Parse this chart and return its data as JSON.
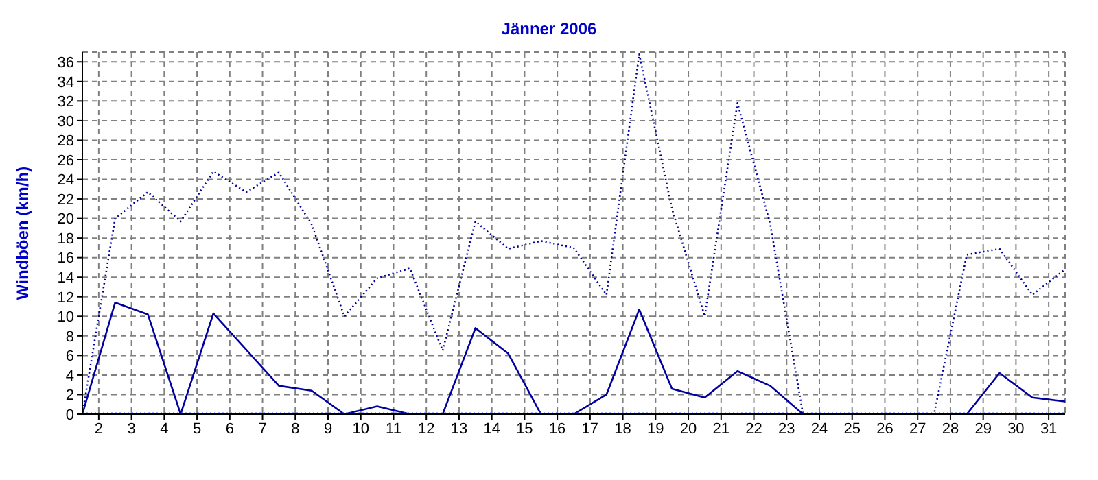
{
  "chart_data": {
    "type": "line",
    "title": "Jänner 2006",
    "ylabel": "Windböen  (km/h)",
    "x": [
      1.5,
      2.5,
      3.5,
      4.5,
      5.5,
      6.5,
      7.5,
      8.5,
      9.5,
      10.5,
      11.5,
      12.5,
      13.5,
      14.5,
      15.5,
      16.5,
      17.5,
      18.5,
      19.5,
      20.5,
      21.5,
      22.5,
      23.5,
      24.5,
      25.5,
      26.5,
      27.5,
      28.5,
      29.5,
      30.5,
      31.5
    ],
    "series": [
      {
        "color": "#0000a0",
        "line_style": "dotted",
        "values": [
          0,
          20,
          22.7,
          19.7,
          24.8,
          22.7,
          24.7,
          19.4,
          10,
          13.9,
          14.9,
          6.5,
          19.7,
          16.9,
          17.7,
          17,
          12.2,
          36.8,
          21,
          10,
          31.8,
          19.4,
          0,
          0,
          0,
          0,
          0,
          16.3,
          16.9,
          12.2,
          14.8
        ]
      },
      {
        "color": "#0000a0",
        "line_style": "solid",
        "values": [
          0,
          11.4,
          10.2,
          0,
          10.3,
          6.6,
          2.9,
          2.4,
          0,
          0.8,
          0,
          0,
          8.8,
          6.2,
          0,
          0,
          2,
          10.7,
          2.6,
          1.7,
          4.4,
          2.9,
          0,
          0,
          0,
          0,
          0,
          0,
          4.2,
          1.7,
          1.3
        ]
      },
      {
        "color": "#3366ff",
        "line_style": "dotted",
        "values": [
          0,
          0,
          0,
          0,
          0,
          0,
          0,
          0,
          0,
          0,
          0,
          0,
          0,
          0,
          0,
          0,
          0,
          0,
          0,
          0,
          0,
          0,
          0,
          0,
          0,
          0,
          0,
          0,
          0,
          0,
          0
        ]
      }
    ],
    "xlim": [
      1.5,
      31.5
    ],
    "xticks": [
      2,
      3,
      4,
      5,
      6,
      7,
      8,
      9,
      10,
      11,
      12,
      13,
      14,
      15,
      16,
      17,
      18,
      19,
      20,
      21,
      22,
      23,
      24,
      25,
      26,
      27,
      28,
      29,
      30,
      31
    ],
    "ylim": [
      0,
      37
    ],
    "yticks": [
      0,
      2,
      4,
      6,
      8,
      10,
      12,
      14,
      16,
      18,
      20,
      22,
      24,
      26,
      28,
      30,
      32,
      34,
      36
    ],
    "grid": true,
    "marker": "none"
  }
}
